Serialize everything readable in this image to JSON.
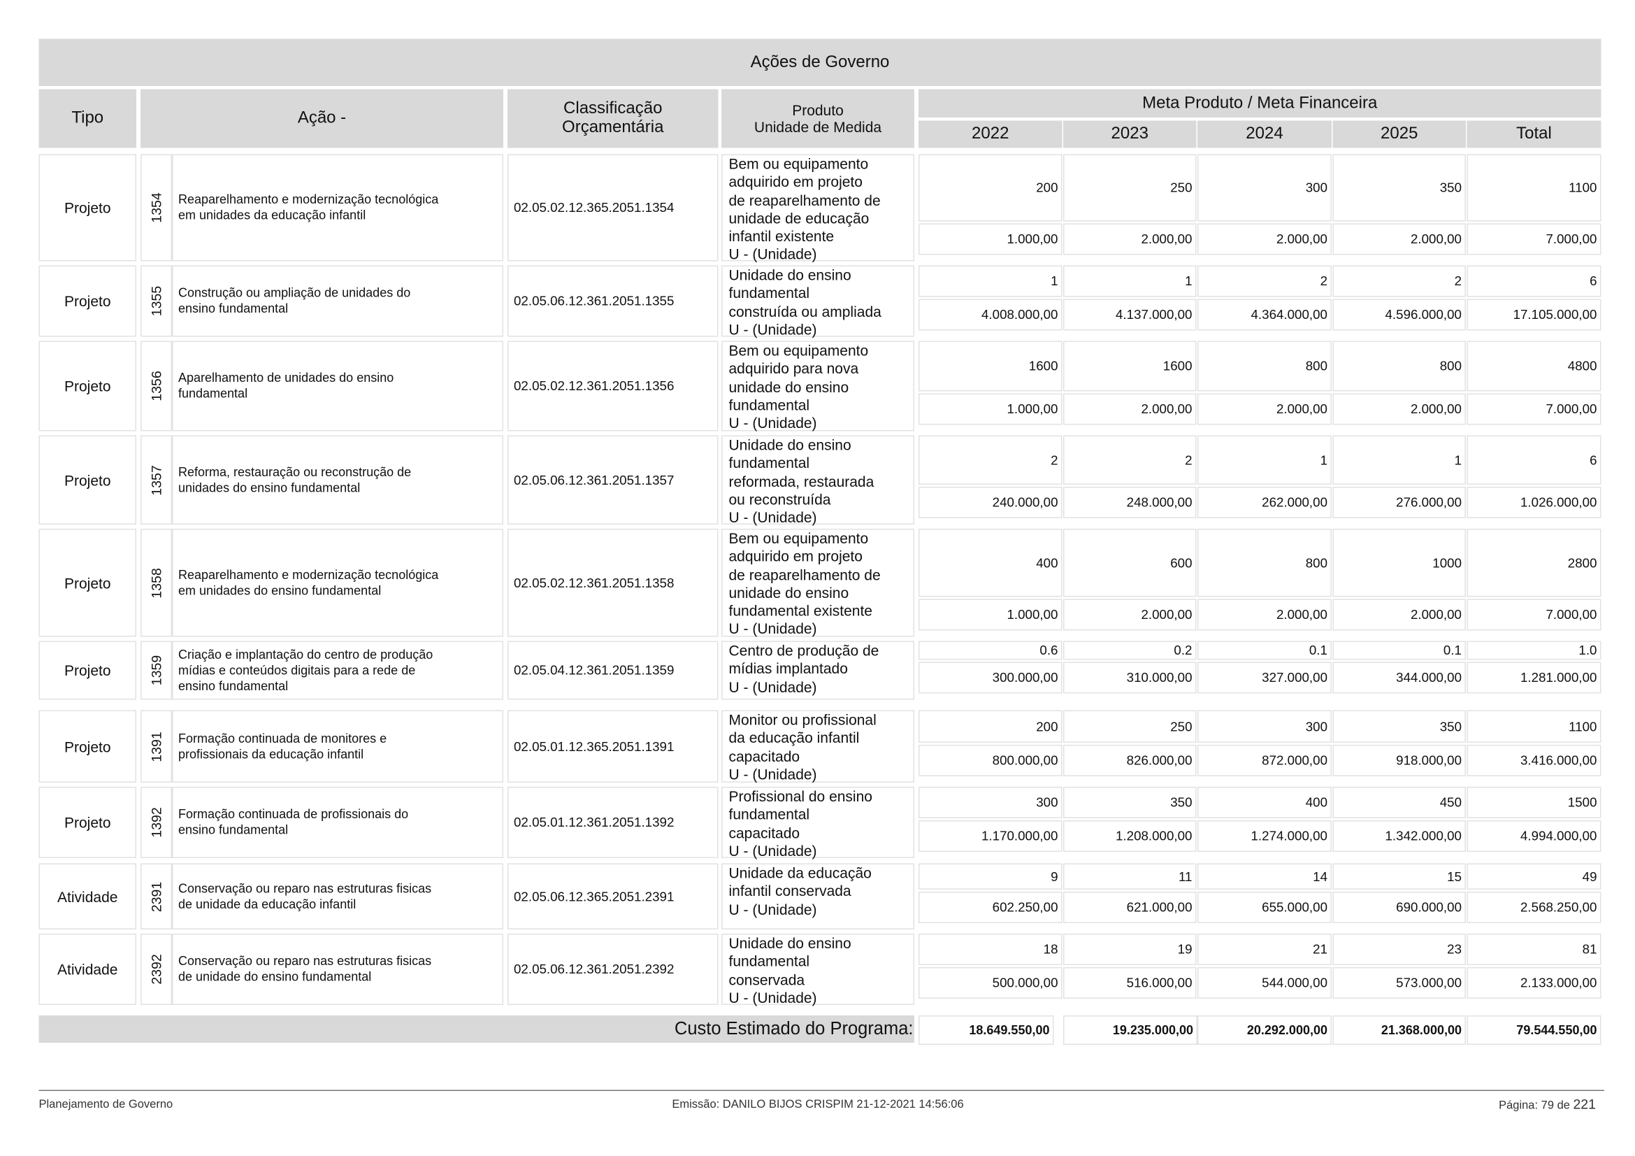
{
  "header": {
    "title": "Ações de Governo"
  },
  "columns": {
    "tipo": "Tipo",
    "acao": "Ação -",
    "classificacao": [
      "Classificação",
      "Orçamentária"
    ],
    "produto": [
      "Produto",
      "Unidade de Medida"
    ],
    "meta": "Meta Produto / Meta Financeira",
    "years": [
      "2022",
      "2023",
      "2024",
      "2025",
      "Total"
    ]
  },
  "rows": [
    {
      "tipo": "Projeto",
      "codigo": "1354",
      "acao": [
        "Reaparelhamento e modernização tecnológica",
        "em unidades da educação infantil"
      ],
      "classificacao": "02.05.02.12.365.2051.1354",
      "produto": [
        "Bem ou equipamento",
        "adquirido em projeto",
        "de reaparelhamento de",
        "unidade de educação",
        "infantil existente",
        "U - (Unidade)"
      ],
      "meta_produto": [
        "200",
        "250",
        "300",
        "350",
        "1100"
      ],
      "meta_financeira": [
        "1.000,00",
        "2.000,00",
        "2.000,00",
        "2.000,00",
        "7.000,00"
      ]
    },
    {
      "tipo": "Projeto",
      "codigo": "1355",
      "acao": [
        "Construção ou ampliação de unidades do",
        "ensino fundamental"
      ],
      "classificacao": "02.05.06.12.361.2051.1355",
      "produto": [
        "Unidade do ensino",
        "fundamental",
        "construída ou ampliada",
        "U - (Unidade)"
      ],
      "meta_produto": [
        "1",
        "1",
        "2",
        "2",
        "6"
      ],
      "meta_financeira": [
        "4.008.000,00",
        "4.137.000,00",
        "4.364.000,00",
        "4.596.000,00",
        "17.105.000,00"
      ]
    },
    {
      "tipo": "Projeto",
      "codigo": "1356",
      "acao": [
        "Aparelhamento de unidades do ensino",
        "fundamental"
      ],
      "classificacao": "02.05.02.12.361.2051.1356",
      "produto": [
        "Bem ou equipamento",
        "adquirido para nova",
        "unidade do ensino",
        "fundamental",
        "U - (Unidade)"
      ],
      "meta_produto": [
        "1600",
        "1600",
        "800",
        "800",
        "4800"
      ],
      "meta_financeira": [
        "1.000,00",
        "2.000,00",
        "2.000,00",
        "2.000,00",
        "7.000,00"
      ]
    },
    {
      "tipo": "Projeto",
      "codigo": "1357",
      "acao": [
        "Reforma, restauração ou reconstrução de",
        "unidades do ensino fundamental"
      ],
      "classificacao": "02.05.06.12.361.2051.1357",
      "produto": [
        "Unidade do ensino",
        "fundamental",
        "reformada, restaurada",
        "ou reconstruída",
        "U - (Unidade)"
      ],
      "meta_produto": [
        "2",
        "2",
        "1",
        "1",
        "6"
      ],
      "meta_financeira": [
        "240.000,00",
        "248.000,00",
        "262.000,00",
        "276.000,00",
        "1.026.000,00"
      ]
    },
    {
      "tipo": "Projeto",
      "codigo": "1358",
      "acao": [
        "Reaparelhamento e modernização tecnológica",
        "em unidades do ensino fundamental"
      ],
      "classificacao": "02.05.02.12.361.2051.1358",
      "produto": [
        "Bem ou equipamento",
        "adquirido em projeto",
        "de reaparelhamento de",
        "unidade do ensino",
        "fundamental existente",
        "U - (Unidade)"
      ],
      "meta_produto": [
        "400",
        "600",
        "800",
        "1000",
        "2800"
      ],
      "meta_financeira": [
        "1.000,00",
        "2.000,00",
        "2.000,00",
        "2.000,00",
        "7.000,00"
      ]
    },
    {
      "tipo": "Projeto",
      "codigo": "1359",
      "acao": [
        "Criação e implantação do centro de produção",
        "mídias e conteúdos digitais para a rede de",
        "ensino fundamental"
      ],
      "classificacao": "02.05.04.12.361.2051.1359",
      "produto": [
        "Centro de produção de",
        "mídias implantado",
        "U - (Unidade)"
      ],
      "meta_produto": [
        "0.6",
        "0.2",
        "0.1",
        "0.1",
        "1.0"
      ],
      "meta_financeira": [
        "300.000,00",
        "310.000,00",
        "327.000,00",
        "344.000,00",
        "1.281.000,00"
      ]
    },
    {
      "tipo": "Projeto",
      "codigo": "1391",
      "acao": [
        "Formação continuada de monitores e",
        "profissionais da educação infantil"
      ],
      "classificacao": "02.05.01.12.365.2051.1391",
      "produto": [
        "Monitor ou profissional",
        "da educação infantil",
        "capacitado",
        "U - (Unidade)"
      ],
      "meta_produto": [
        "200",
        "250",
        "300",
        "350",
        "1100"
      ],
      "meta_financeira": [
        "800.000,00",
        "826.000,00",
        "872.000,00",
        "918.000,00",
        "3.416.000,00"
      ]
    },
    {
      "tipo": "Projeto",
      "codigo": "1392",
      "acao": [
        "Formação continuada de profissionais do",
        "ensino fundamental"
      ],
      "classificacao": "02.05.01.12.361.2051.1392",
      "produto": [
        "Profissional do ensino",
        "fundamental",
        "capacitado",
        "U - (Unidade)"
      ],
      "meta_produto": [
        "300",
        "350",
        "400",
        "450",
        "1500"
      ],
      "meta_financeira": [
        "1.170.000,00",
        "1.208.000,00",
        "1.274.000,00",
        "1.342.000,00",
        "4.994.000,00"
      ]
    },
    {
      "tipo": "Atividade",
      "codigo": "2391",
      "acao": [
        "Conservação ou reparo nas estruturas fisicas",
        "de unidade da educação infantil"
      ],
      "classificacao": "02.05.06.12.365.2051.2391",
      "produto": [
        "Unidade da educação",
        "infantil conservada",
        "U - (Unidade)"
      ],
      "meta_produto": [
        "9",
        "11",
        "14",
        "15",
        "49"
      ],
      "meta_financeira": [
        "602.250,00",
        "621.000,00",
        "655.000,00",
        "690.000,00",
        "2.568.250,00"
      ]
    },
    {
      "tipo": "Atividade",
      "codigo": "2392",
      "acao": [
        "Conservação ou reparo nas estruturas fisicas",
        "de unidade do ensino fundamental"
      ],
      "classificacao": "02.05.06.12.361.2051.2392",
      "produto": [
        "Unidade do ensino",
        "fundamental",
        "conservada",
        "U - (Unidade)"
      ],
      "meta_produto": [
        "18",
        "19",
        "21",
        "23",
        "81"
      ],
      "meta_financeira": [
        "500.000,00",
        "516.000,00",
        "544.000,00",
        "573.000,00",
        "2.133.000,00"
      ]
    }
  ],
  "total": {
    "label": "Custo Estimado do Programa:",
    "values": [
      "18.649.550,00",
      "19.235.000,00",
      "20.292.000,00",
      "21.368.000,00",
      "79.544.550,00"
    ]
  },
  "footer": {
    "left": "Planejamento de Governo",
    "center": "Emissão: DANILO BIJOS CRISPIM 21-12-2021 14:56:06",
    "page": "Página: 79 de",
    "pages": "221"
  }
}
